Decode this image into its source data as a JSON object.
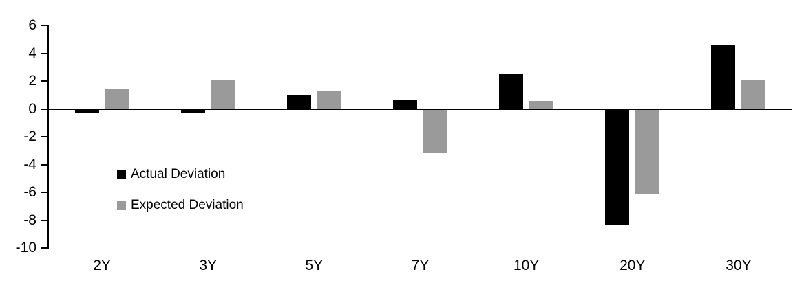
{
  "chart_data": {
    "type": "bar",
    "title": "",
    "xlabel": "",
    "ylabel": "",
    "categories": [
      "2Y",
      "3Y",
      "5Y",
      "7Y",
      "10Y",
      "20Y",
      "30Y"
    ],
    "series": [
      {
        "name": "Actual Deviation",
        "color": "#000000",
        "values": [
          -0.3,
          -0.3,
          1.0,
          0.6,
          2.5,
          -8.3,
          4.6
        ]
      },
      {
        "name": "Expected Deviation",
        "color": "#9A9A9A",
        "values": [
          1.4,
          2.1,
          1.3,
          -3.2,
          0.55,
          -6.1,
          2.1
        ]
      }
    ],
    "yticks": [
      6,
      4,
      2,
      0,
      -2,
      -4,
      -6,
      -8,
      -10
    ],
    "ylim": [
      -10,
      6
    ],
    "grid": false,
    "legend_position": "inside-left",
    "axis_color": "#000000",
    "background_color": "#ffffff"
  }
}
